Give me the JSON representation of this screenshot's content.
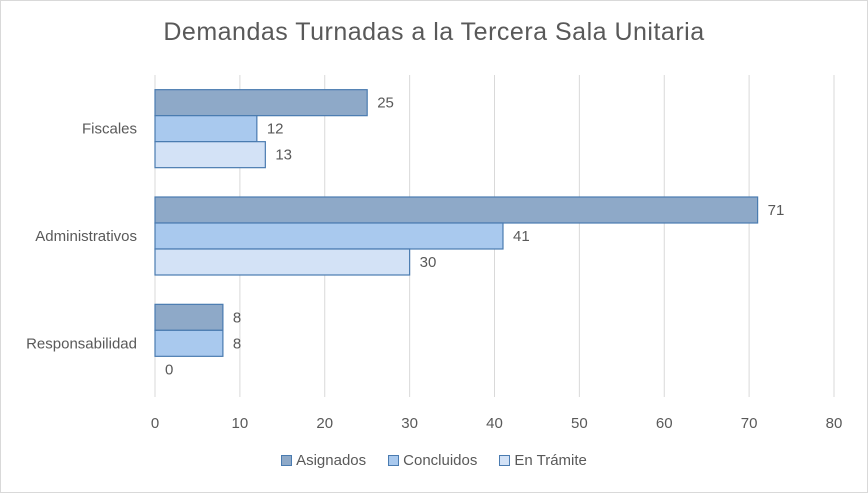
{
  "chart_data": {
    "type": "bar",
    "orientation": "horizontal",
    "title": "Demandas  Turnadas  a la Tercera  Sala Unitaria",
    "categories": [
      "Fiscales",
      "Administrativos",
      "Responsabilidad"
    ],
    "series": [
      {
        "name": "Asignados",
        "values": [
          25,
          71,
          8
        ],
        "color": "#8ea9c8"
      },
      {
        "name": "Concluidos",
        "values": [
          12,
          41,
          8
        ],
        "color": "#a9c9ee"
      },
      {
        "name": "En Trámite",
        "values": [
          13,
          30,
          0
        ],
        "color": "#d3e2f6"
      }
    ],
    "xlim": [
      0,
      80
    ],
    "xticks": [
      0,
      10,
      20,
      30,
      40,
      50,
      60,
      70,
      80
    ],
    "grid": "vertical",
    "legend": "bottom"
  }
}
